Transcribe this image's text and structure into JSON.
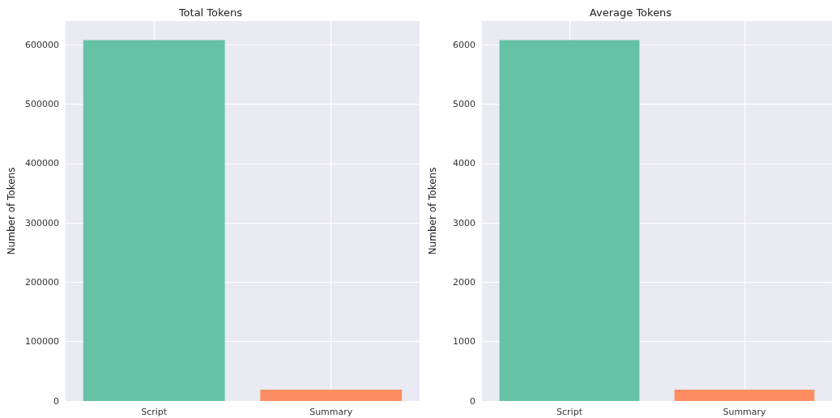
{
  "chart_data": [
    {
      "type": "bar",
      "title": "Total Tokens",
      "ylabel": "Number of Tokens",
      "categories": [
        "Script",
        "Summary"
      ],
      "values": [
        608000,
        19000
      ],
      "colors": [
        "#66c2a5",
        "#fc8d62"
      ],
      "ylim": [
        0,
        640000
      ],
      "yticks": [
        0,
        100000,
        200000,
        300000,
        400000,
        500000,
        600000
      ],
      "grid": true
    },
    {
      "type": "bar",
      "title": "Average Tokens",
      "ylabel": "Number of Tokens",
      "categories": [
        "Script",
        "Summary"
      ],
      "values": [
        6080,
        190
      ],
      "colors": [
        "#66c2a5",
        "#fc8d62"
      ],
      "ylim": [
        0,
        6400
      ],
      "yticks": [
        0,
        1000,
        2000,
        3000,
        4000,
        5000,
        6000
      ],
      "grid": true
    }
  ]
}
